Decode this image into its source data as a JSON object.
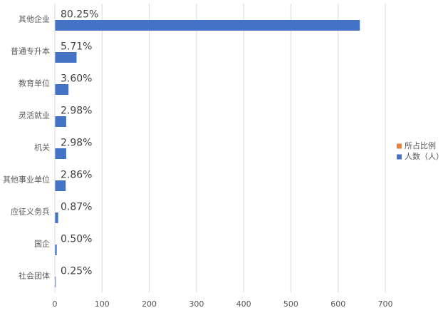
{
  "chart_data": {
    "type": "hbar",
    "categories": [
      "其他企业",
      "普通专升本",
      "教育单位",
      "灵活就业",
      "机关",
      "其他事业单位",
      "应征义务兵",
      "国企",
      "社会团体"
    ],
    "series": [
      {
        "name": "所占比例",
        "color": "#ed7d31",
        "values": [
          0.8025,
          0.0571,
          0.036,
          0.0298,
          0.0298,
          0.0286,
          0.0087,
          0.005,
          0.0025
        ],
        "value_labels": [
          "80.25%",
          "5.71%",
          "3.60%",
          "2.98%",
          "2.98%",
          "2.86%",
          "0.87%",
          "0.50%",
          "0.25%"
        ]
      },
      {
        "name": "人数（人）",
        "color": "#4472c4",
        "values": [
          646,
          46,
          29,
          24,
          24,
          23,
          7,
          4,
          2
        ]
      }
    ],
    "xlim": [
      0,
      700
    ],
    "xticks": [
      0,
      100,
      200,
      300,
      400,
      500,
      600,
      700
    ],
    "grid": true,
    "legend": "right"
  }
}
